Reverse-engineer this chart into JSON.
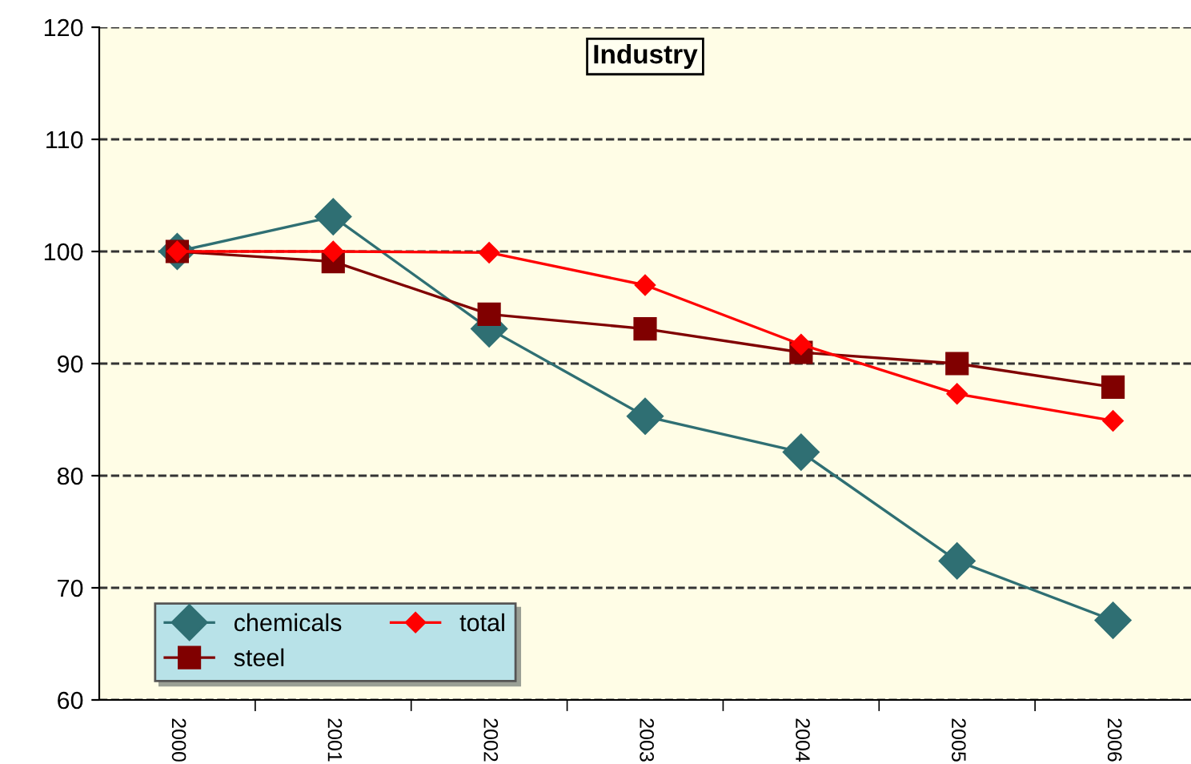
{
  "chart_data": {
    "type": "line",
    "title": "Industry",
    "categories": [
      "2000",
      "2001",
      "2002",
      "2003",
      "2004",
      "2005",
      "2006"
    ],
    "series": [
      {
        "name": "chemicals",
        "color": "#2f6f73",
        "marker": "diamond",
        "values": [
          100,
          103.1,
          93.1,
          85.3,
          82.1,
          72.4,
          67.1
        ]
      },
      {
        "name": "steel",
        "color": "#800000",
        "marker": "square",
        "values": [
          100,
          99.1,
          94.4,
          93.1,
          91,
          90,
          87.9
        ]
      },
      {
        "name": "total",
        "color": "#ff0000",
        "marker": "diamond",
        "values": [
          100,
          100,
          99.9,
          97,
          91.7,
          87.3,
          84.9
        ]
      }
    ],
    "ylim": [
      60,
      120
    ],
    "yticks": [
      60,
      70,
      80,
      90,
      100,
      110,
      120
    ],
    "grid": "y",
    "legend": "bottom left",
    "line_style": "solid"
  }
}
